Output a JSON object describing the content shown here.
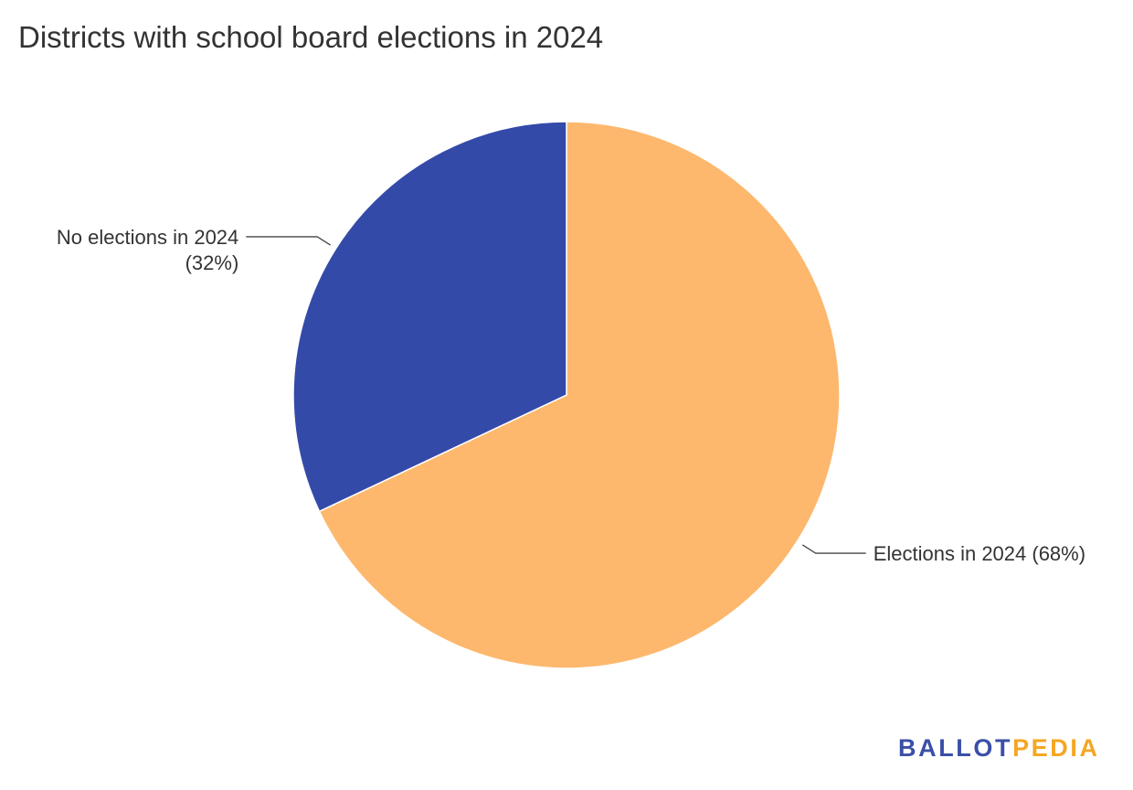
{
  "chart_data": {
    "type": "pie",
    "title": "Districts with school board elections in 2024",
    "slices": [
      {
        "label": "Elections in 2024",
        "value": 68,
        "display_lines": [
          "Elections in 2024 (68%)"
        ],
        "color": "#fdb86e"
      },
      {
        "label": "No elections in 2024",
        "value": 32,
        "display_lines": [
          "No elections in 2024",
          "(32%)"
        ],
        "color": "#344aa8"
      }
    ],
    "start_angle": "12 o'clock",
    "direction": "clockwise"
  },
  "brand": {
    "part_a": "BALLOT",
    "part_b": "PEDIA",
    "colors": {
      "part_a": "#3b4fa8",
      "part_b": "#f5a623"
    }
  }
}
